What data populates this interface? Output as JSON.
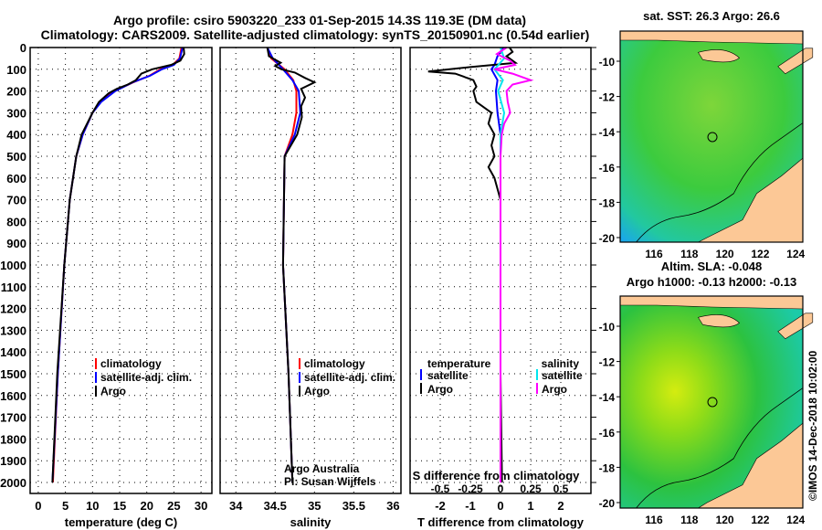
{
  "title_line1": "Argo profile: csiro 5903220_233 01-Sep-2015 14.3S 119.3E (DM data)",
  "title_line2": "Climatology: CARS2009. Satellite-adjusted climatology: synTS_20150901.nc (0.54d earlier)",
  "colors": {
    "climatology": "#ff0000",
    "satellite": "#0000ff",
    "argo": "#000000",
    "sal_satellite": "#00e5ee",
    "sal_argo": "#ff00ff",
    "land": "#fcc896"
  },
  "depth_ticks": [
    0,
    100,
    200,
    300,
    400,
    500,
    600,
    700,
    800,
    900,
    1000,
    1100,
    1200,
    1300,
    1400,
    1500,
    1600,
    1700,
    1800,
    1900,
    2000
  ],
  "chart_data": [
    {
      "type": "line",
      "xlabel": "temperature (deg C)",
      "ylabel": "depth",
      "xlim": [
        -1.5,
        32
      ],
      "ylim": [
        2050,
        0
      ],
      "xticks": [
        0,
        5,
        10,
        15,
        20,
        25,
        30
      ],
      "legend": [
        "climatology",
        "satellite-adj. clim.",
        "Argo"
      ],
      "grid": true,
      "series": [
        {
          "name": "climatology",
          "color": "#ff0000",
          "depth": [
            0,
            50,
            80,
            100,
            130,
            160,
            200,
            250,
            300,
            400,
            500,
            700,
            1000,
            1500,
            2000
          ],
          "values": [
            26.4,
            26,
            24.8,
            22.5,
            20.5,
            17.5,
            14,
            11.5,
            10,
            8.2,
            7,
            5.8,
            4.8,
            3.6,
            2.7
          ]
        },
        {
          "name": "satellite-adj. clim.",
          "color": "#0000ff",
          "depth": [
            0,
            50,
            80,
            100,
            130,
            160,
            200,
            250,
            300,
            400,
            500,
            700,
            1000,
            1500,
            2000
          ],
          "values": [
            26.6,
            26.1,
            25,
            22.8,
            20.6,
            17.4,
            14.2,
            11.6,
            10,
            8.2,
            7,
            5.8,
            4.8,
            3.6,
            2.6
          ]
        },
        {
          "name": "Argo",
          "color": "#000000",
          "depth": [
            0,
            30,
            60,
            80,
            100,
            120,
            150,
            170,
            190,
            210,
            250,
            300,
            400,
            500,
            700,
            1000,
            1500,
            2000
          ],
          "values": [
            26.8,
            26.9,
            26.2,
            24.5,
            21,
            19,
            18,
            16.5,
            14.5,
            13,
            11.2,
            10,
            8,
            7,
            5.8,
            4.8,
            3.5,
            2.6
          ]
        }
      ]
    },
    {
      "type": "line",
      "xlabel": "salinity",
      "ylabel": "depth",
      "xlim": [
        33.8,
        36.1
      ],
      "ylim": [
        2050,
        0
      ],
      "xticks": [
        34,
        34.5,
        35,
        35.5,
        36
      ],
      "legend": [
        "climatology",
        "satellite-adj. clim.",
        "Argo"
      ],
      "annotation": [
        "Argo Australia",
        "PI: Susan Wijffels"
      ],
      "grid": true,
      "series": [
        {
          "name": "climatology",
          "color": "#ff0000",
          "depth": [
            0,
            50,
            100,
            150,
            200,
            300,
            400,
            500,
            1000,
            1500,
            2000
          ],
          "values": [
            34.4,
            34.45,
            34.62,
            34.73,
            34.77,
            34.77,
            34.72,
            34.62,
            34.6,
            34.67,
            34.72
          ]
        },
        {
          "name": "satellite-adj. clim.",
          "color": "#0000ff",
          "depth": [
            0,
            50,
            100,
            150,
            200,
            300,
            400,
            500,
            1000,
            1500,
            2000
          ],
          "values": [
            34.4,
            34.47,
            34.6,
            34.72,
            34.8,
            34.82,
            34.75,
            34.62,
            34.6,
            34.67,
            34.72
          ]
        },
        {
          "name": "Argo",
          "color": "#000000",
          "depth": [
            0,
            40,
            70,
            85,
            100,
            115,
            140,
            160,
            190,
            230,
            270,
            320,
            400,
            500,
            1000,
            1500,
            2000
          ],
          "values": [
            34.4,
            34.42,
            34.57,
            34.5,
            34.58,
            34.75,
            34.88,
            35.0,
            34.83,
            34.88,
            34.83,
            34.84,
            34.78,
            34.62,
            34.6,
            34.67,
            34.72
          ]
        }
      ]
    },
    {
      "type": "line",
      "xlabel": "T difference from climatology",
      "xlabel2": "S difference from climatology",
      "ylabel": "depth",
      "xlim": [
        -3,
        3
      ],
      "xlim_s": [
        -0.75,
        0.75
      ],
      "ylim": [
        2050,
        0
      ],
      "xticks": [
        -2,
        -1,
        0,
        1,
        2
      ],
      "xticks_s": [
        -0.5,
        -0.25,
        0,
        0.25,
        0.5
      ],
      "xticklabels_s": [
        "-0.5",
        "-0.25",
        "0",
        "0.25",
        "0.5"
      ],
      "legend_t": [
        "temperature",
        "satellite",
        "Argo"
      ],
      "legend_s": [
        "salinity",
        "satellite",
        "Argo"
      ],
      "grid": true,
      "series": [
        {
          "name": "temperature satellite",
          "axis": "T",
          "color": "#0000ff",
          "depth": [
            0,
            40,
            80,
            100,
            150,
            200,
            300,
            400,
            600,
            1000,
            2000
          ],
          "values": [
            0.1,
            -0.1,
            -0.2,
            -0.3,
            -0.1,
            -0.15,
            -0.1,
            0,
            0,
            0,
            0
          ]
        },
        {
          "name": "temperature Argo",
          "axis": "T",
          "color": "#000000",
          "depth": [
            0,
            20,
            40,
            70,
            90,
            110,
            120,
            150,
            180,
            200,
            250,
            300,
            350,
            400,
            450,
            500,
            550,
            600,
            700,
            1000,
            1500,
            2000
          ],
          "values": [
            0.3,
            0.4,
            0.2,
            0.5,
            -1,
            -2.4,
            -1.5,
            -0.9,
            -0.8,
            -0.9,
            -0.8,
            -0.3,
            -0.4,
            -0.2,
            -0.3,
            -0.2,
            -0.4,
            -0.2,
            0,
            0,
            0,
            0.05
          ]
        },
        {
          "name": "salinity satellite",
          "axis": "S",
          "color": "#00e5ee",
          "depth": [
            0,
            50,
            100,
            150,
            200,
            300,
            400,
            600,
            1000,
            2000
          ],
          "values": [
            0,
            0.03,
            -0.05,
            0.02,
            -0.02,
            0.03,
            0,
            0,
            0,
            0
          ]
        },
        {
          "name": "salinity Argo",
          "axis": "S",
          "color": "#ff00ff",
          "depth": [
            0,
            30,
            60,
            80,
            100,
            120,
            150,
            170,
            200,
            250,
            300,
            350,
            400,
            500,
            1000,
            2000
          ],
          "values": [
            0.05,
            -0.03,
            0.08,
            0.12,
            -0.05,
            0.1,
            0.25,
            0.1,
            0.05,
            0.06,
            0.08,
            0.03,
            0.01,
            0,
            0,
            0
          ]
        }
      ]
    }
  ],
  "maps": [
    {
      "title": "sat. SST: 26.3 Argo: 26.6",
      "lat_ticks": [
        "-10",
        "-12",
        "-14",
        "-16",
        "-18",
        "-20"
      ],
      "lon_ticks": [
        "116",
        "118",
        "120",
        "122",
        "124"
      ],
      "float_lon": 119.3,
      "float_lat": -14.3
    },
    {
      "title": "Altim. SLA: -0.048",
      "title2": "Argo h1000: -0.13 h2000: -0.13",
      "lat_ticks": [
        "-10",
        "-12",
        "-14",
        "-16",
        "-18",
        "-20"
      ],
      "lon_ticks": [
        "116",
        "118",
        "120",
        "122",
        "124"
      ],
      "float_lon": 119.3,
      "float_lat": -14.3
    }
  ],
  "credit": "©IMOS 14-Dec-2018 10:02:00"
}
